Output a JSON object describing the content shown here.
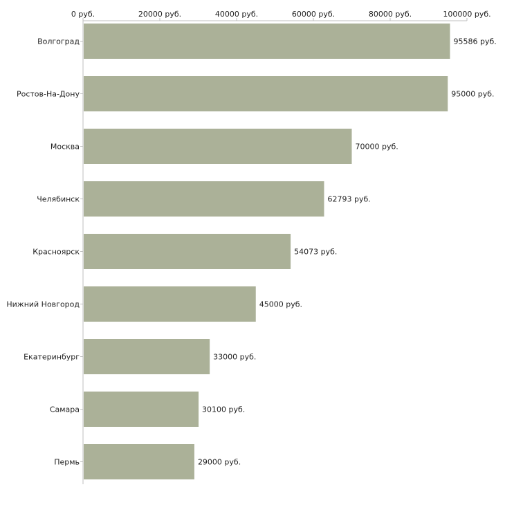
{
  "chart_data": {
    "type": "bar",
    "orientation": "horizontal",
    "title": "",
    "xlabel": "",
    "ylabel": "",
    "categories": [
      "Волгоград",
      "Ростов-На-Дону",
      "Москва",
      "Челябинск",
      "Красноярск",
      "Нижний Новгород",
      "Екатеринбург",
      "Самара",
      "Пермь"
    ],
    "values": [
      95586,
      95000,
      70000,
      62793,
      54073,
      45000,
      33000,
      30100,
      29000
    ],
    "value_labels": [
      "95586 руб.",
      "95000 руб.",
      "70000 руб.",
      "62793 руб.",
      "54073 руб.",
      "45000 руб.",
      "33000 руб.",
      "30100 руб.",
      "29000 руб."
    ],
    "xlim": [
      0,
      100000
    ],
    "x_ticks": [
      0,
      20000,
      40000,
      60000,
      80000,
      100000
    ],
    "x_tick_labels": [
      "0 руб.",
      "20000 руб.",
      "40000 руб.",
      "60000 руб.",
      "80000 руб.",
      "100000 руб."
    ],
    "grid": false,
    "legend": "none",
    "bar_color": "#abb198",
    "axis_color": "#bfbfbf",
    "text_color": "#222222"
  }
}
